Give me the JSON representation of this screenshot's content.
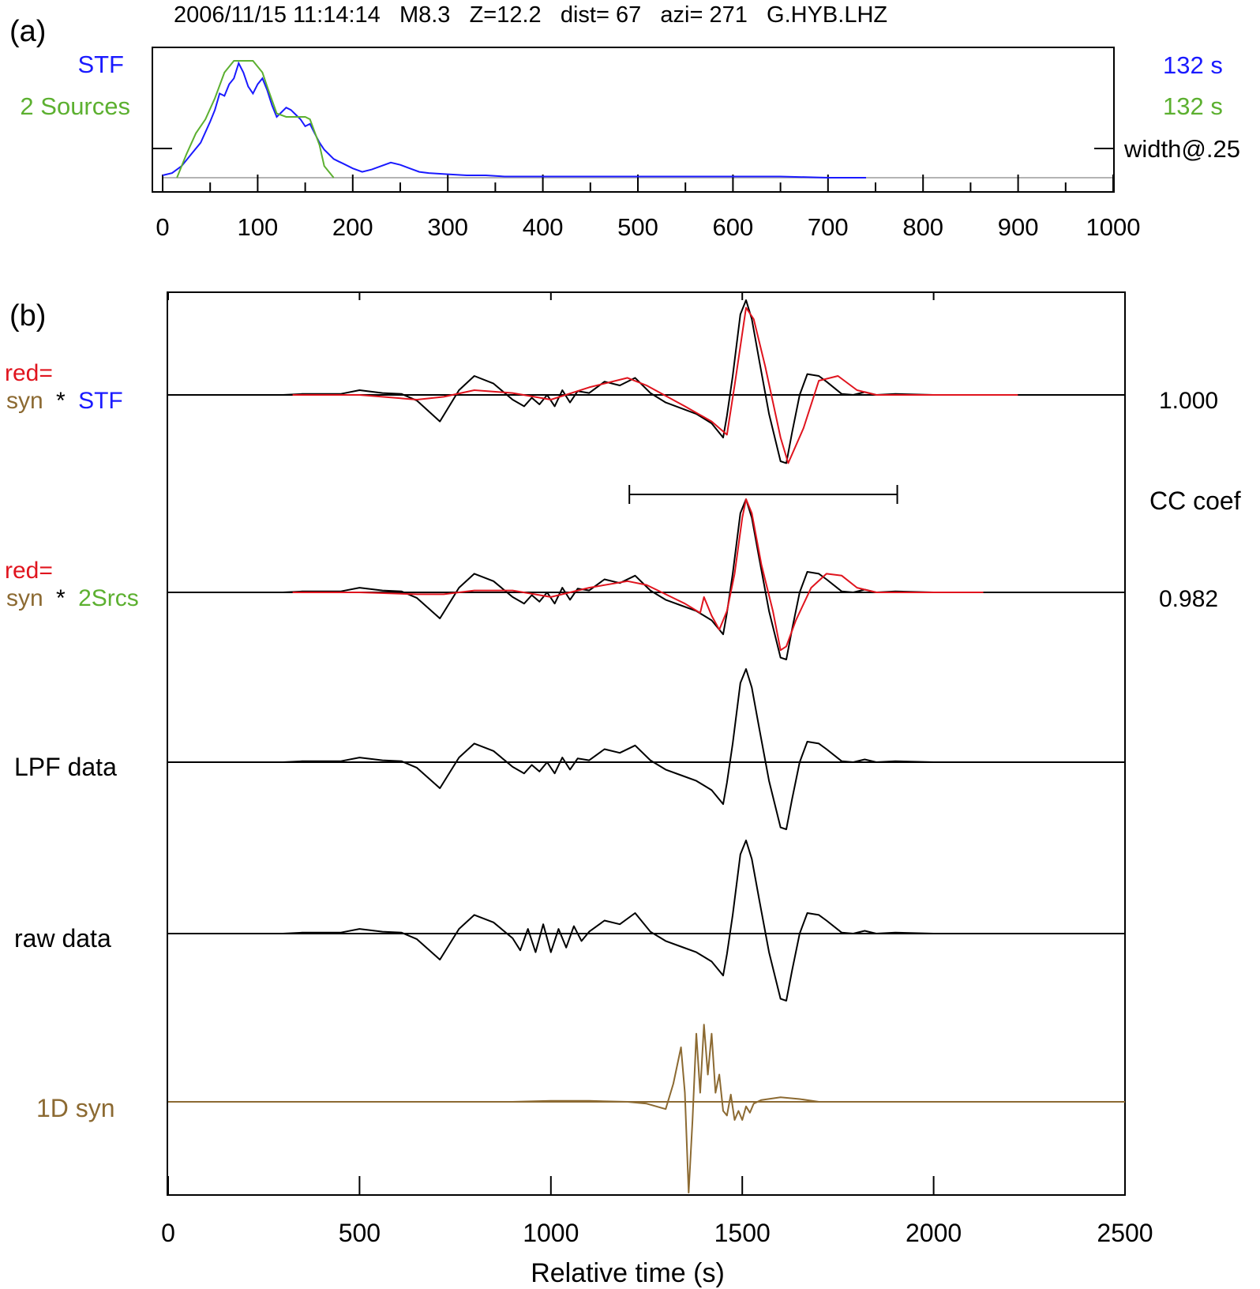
{
  "colors": {
    "blue": "#1a1aff",
    "green": "#5cb030",
    "red": "#e0141e",
    "brown": "#8c6a32",
    "black": "#000000",
    "grey": "#b4b4b4"
  },
  "panel_a": {
    "tag": "(a)",
    "header": "2006/11/15 11:14:14   M8.3   Z=12.2   dist= 67   azi= 271   G.HYB.LHZ",
    "left_labels": {
      "stf": "STF",
      "two_sources": "2 Sources"
    },
    "right_labels": {
      "stf_duration": "132 s",
      "two_sources_duration": "132 s",
      "width_note": "width@.25"
    }
  },
  "panel_b": {
    "tag": "(b)",
    "trace_labels": {
      "red_prefix": "red=",
      "syn": "syn",
      "star": "*",
      "stf": "STF",
      "two_srcs": "2Srcs",
      "lpf": "LPF data",
      "raw": "raw data",
      "syn1d": "1D syn"
    },
    "cc_title": "CC coef",
    "cc_values": [
      "1.000",
      "0.982"
    ],
    "xlabel": "Relative time (s)"
  },
  "chart_data": [
    {
      "type": "line",
      "xlim": [
        0,
        1000
      ],
      "xticks": [
        0,
        100,
        200,
        300,
        400,
        500,
        600,
        700,
        800,
        900,
        1000
      ],
      "xtick_labels": [
        "0",
        "100",
        "200",
        "300",
        "400",
        "500",
        "600",
        "700",
        "800",
        "900",
        "1000"
      ],
      "ylim": [
        0,
        1
      ],
      "series": [
        {
          "name": "STF",
          "color": "#1a1aff",
          "x": [
            0,
            10,
            20,
            30,
            40,
            50,
            55,
            60,
            65,
            70,
            75,
            80,
            85,
            90,
            95,
            100,
            105,
            110,
            115,
            120,
            125,
            130,
            135,
            140,
            145,
            150,
            155,
            160,
            165,
            170,
            175,
            180,
            185,
            190,
            200,
            210,
            220,
            230,
            240,
            250,
            260,
            270,
            280,
            300,
            320,
            340,
            360,
            380,
            400,
            450,
            500,
            550,
            600,
            650,
            700,
            740
          ],
          "y": [
            0.02,
            0.04,
            0.1,
            0.2,
            0.3,
            0.48,
            0.58,
            0.72,
            0.7,
            0.8,
            0.85,
            0.98,
            0.9,
            0.78,
            0.72,
            0.8,
            0.85,
            0.75,
            0.62,
            0.52,
            0.56,
            0.6,
            0.58,
            0.54,
            0.5,
            0.44,
            0.46,
            0.38,
            0.3,
            0.24,
            0.2,
            0.16,
            0.14,
            0.12,
            0.08,
            0.05,
            0.07,
            0.1,
            0.13,
            0.11,
            0.08,
            0.05,
            0.04,
            0.03,
            0.02,
            0.02,
            0.01,
            0.01,
            0.01,
            0.01,
            0.01,
            0.01,
            0.01,
            0.01,
            0.0,
            0.0
          ]
        },
        {
          "name": "2 Sources",
          "color": "#5cb030",
          "x": [
            15,
            25,
            35,
            45,
            55,
            65,
            75,
            85,
            95,
            105,
            110,
            120,
            130,
            140,
            150,
            155,
            165,
            170,
            180
          ],
          "y": [
            0.0,
            0.2,
            0.38,
            0.5,
            0.68,
            0.9,
            1.0,
            1.0,
            1.0,
            0.9,
            0.78,
            0.55,
            0.52,
            0.52,
            0.52,
            0.5,
            0.28,
            0.1,
            0.0
          ]
        }
      ]
    },
    {
      "type": "line",
      "xlim": [
        0,
        2500
      ],
      "xticks": [
        0,
        500,
        1000,
        1500,
        2000,
        2500
      ],
      "xtick_labels": [
        "0",
        "500",
        "1000",
        "1500",
        "2000",
        "2500"
      ],
      "xlabel": "Relative time (s)",
      "cc_window": [
        1205,
        1905
      ],
      "traces": [
        {
          "color": "#000000",
          "x": [
            0,
            150,
            300,
            350,
            450,
            500,
            560,
            610,
            650,
            710,
            760,
            800,
            850,
            900,
            930,
            950,
            970,
            990,
            1010,
            1030,
            1050,
            1070,
            1100,
            1140,
            1180,
            1220,
            1260,
            1300,
            1340,
            1380,
            1420,
            1450,
            1460,
            1475,
            1495,
            1510,
            1525,
            1545,
            1570,
            1600,
            1615,
            1630,
            1650,
            1670,
            1700,
            1720,
            1760,
            1790,
            1820,
            1850,
            1900,
            2000,
            2100,
            2200,
            2300,
            2500
          ],
          "y": [
            0,
            0,
            0,
            0.01,
            0.01,
            0.05,
            0.02,
            0.01,
            -0.06,
            -0.28,
            0.05,
            0.2,
            0.12,
            -0.05,
            -0.12,
            -0.03,
            -0.1,
            0.0,
            -0.12,
            0.05,
            -0.08,
            0.04,
            0.02,
            0.14,
            0.1,
            0.18,
            0.02,
            -0.08,
            -0.14,
            -0.2,
            -0.3,
            -0.45,
            -0.22,
            0.2,
            0.85,
            1.0,
            0.8,
            0.35,
            -0.2,
            -0.7,
            -0.72,
            -0.4,
            0.0,
            0.22,
            0.2,
            0.14,
            0.01,
            0.0,
            0.03,
            0.0,
            0.01,
            0.0,
            0.0,
            0.0,
            0.0,
            0.0
          ]
        },
        {
          "color": "#e0141e",
          "x": [
            325,
            500,
            650,
            720,
            800,
            900,
            1000,
            1100,
            1200,
            1250,
            1350,
            1420,
            1460,
            1480,
            1510,
            1530,
            1560,
            1600,
            1620,
            1660,
            1700,
            1750,
            1800,
            1850,
            2000,
            2220
          ],
          "y": [
            0,
            0,
            -0.05,
            -0.02,
            0.05,
            0.02,
            -0.05,
            0.08,
            0.18,
            0.1,
            -0.12,
            -0.28,
            -0.42,
            0.1,
            0.92,
            0.8,
            0.3,
            -0.45,
            -0.72,
            -0.35,
            0.15,
            0.2,
            0.05,
            0.0,
            0.0,
            0.0
          ]
        },
        {
          "color": "#000000",
          "x": [
            0,
            150,
            300,
            350,
            450,
            500,
            560,
            610,
            650,
            710,
            760,
            800,
            850,
            900,
            930,
            950,
            970,
            990,
            1010,
            1030,
            1050,
            1070,
            1100,
            1140,
            1180,
            1220,
            1260,
            1300,
            1340,
            1380,
            1420,
            1450,
            1460,
            1475,
            1495,
            1510,
            1525,
            1545,
            1570,
            1600,
            1615,
            1630,
            1650,
            1670,
            1700,
            1720,
            1760,
            1790,
            1820,
            1850,
            1900,
            2000,
            2100,
            2200,
            2300,
            2500
          ],
          "y": [
            0,
            0,
            0,
            0.01,
            0.01,
            0.05,
            0.02,
            0.01,
            -0.06,
            -0.28,
            0.05,
            0.2,
            0.12,
            -0.05,
            -0.12,
            -0.03,
            -0.1,
            0.0,
            -0.12,
            0.05,
            -0.08,
            0.04,
            0.02,
            0.14,
            0.1,
            0.18,
            0.02,
            -0.08,
            -0.14,
            -0.2,
            -0.3,
            -0.45,
            -0.22,
            0.2,
            0.85,
            1.0,
            0.8,
            0.35,
            -0.2,
            -0.7,
            -0.72,
            -0.4,
            0.0,
            0.22,
            0.2,
            0.14,
            0.01,
            0.0,
            0.03,
            0.0,
            0.01,
            0.0,
            0.0,
            0.0,
            0.0,
            0.0
          ]
        },
        {
          "color": "#e0141e",
          "x": [
            325,
            500,
            650,
            720,
            800,
            900,
            1000,
            1100,
            1200,
            1250,
            1350,
            1390,
            1400,
            1420,
            1440,
            1460,
            1480,
            1500,
            1510,
            1525,
            1550,
            1580,
            1600,
            1615,
            1640,
            1680,
            1720,
            1760,
            1800,
            1850,
            2000,
            2130
          ],
          "y": [
            0,
            0,
            -0.02,
            -0.02,
            0.02,
            0.02,
            -0.05,
            0.05,
            0.12,
            0.08,
            -0.12,
            -0.22,
            -0.05,
            -0.25,
            -0.4,
            -0.2,
            0.2,
            0.8,
            1.0,
            0.85,
            0.3,
            -0.2,
            -0.62,
            -0.58,
            -0.3,
            0.05,
            0.2,
            0.18,
            0.05,
            0.0,
            0.0,
            0.0
          ]
        },
        {
          "color": "#000000",
          "x": [
            0,
            150,
            300,
            350,
            450,
            500,
            560,
            610,
            650,
            710,
            760,
            800,
            850,
            900,
            930,
            950,
            970,
            990,
            1010,
            1030,
            1050,
            1070,
            1100,
            1140,
            1180,
            1220,
            1260,
            1300,
            1340,
            1380,
            1420,
            1450,
            1460,
            1475,
            1495,
            1510,
            1525,
            1545,
            1570,
            1600,
            1615,
            1630,
            1650,
            1670,
            1700,
            1720,
            1760,
            1790,
            1820,
            1850,
            1900,
            2000,
            2100,
            2200,
            2300,
            2500
          ],
          "y": [
            0,
            0,
            0,
            0.01,
            0.01,
            0.05,
            0.02,
            0.01,
            -0.06,
            -0.28,
            0.05,
            0.2,
            0.12,
            -0.05,
            -0.12,
            -0.03,
            -0.1,
            0.0,
            -0.12,
            0.05,
            -0.08,
            0.04,
            0.02,
            0.14,
            0.1,
            0.18,
            0.02,
            -0.08,
            -0.14,
            -0.2,
            -0.3,
            -0.45,
            -0.22,
            0.2,
            0.85,
            1.0,
            0.8,
            0.35,
            -0.2,
            -0.7,
            -0.72,
            -0.4,
            0.0,
            0.22,
            0.2,
            0.14,
            0.01,
            0.0,
            0.03,
            0.0,
            0.01,
            0.0,
            0.0,
            0.0,
            0.0,
            0.0
          ]
        },
        {
          "color": "#000000",
          "x": [
            0,
            150,
            300,
            350,
            450,
            500,
            560,
            610,
            650,
            710,
            760,
            800,
            850,
            900,
            920,
            940,
            960,
            980,
            1000,
            1020,
            1040,
            1060,
            1080,
            1100,
            1140,
            1180,
            1220,
            1260,
            1300,
            1340,
            1380,
            1420,
            1450,
            1460,
            1475,
            1495,
            1510,
            1525,
            1545,
            1570,
            1600,
            1615,
            1630,
            1650,
            1670,
            1700,
            1720,
            1760,
            1790,
            1820,
            1850,
            1900,
            2000,
            2100,
            2200,
            2300,
            2500
          ],
          "y": [
            0,
            0,
            0,
            0.01,
            0.01,
            0.05,
            0.02,
            0.01,
            -0.06,
            -0.28,
            0.05,
            0.2,
            0.12,
            -0.05,
            -0.18,
            0.05,
            -0.2,
            0.1,
            -0.2,
            0.05,
            -0.15,
            0.08,
            -0.08,
            0.02,
            0.14,
            0.1,
            0.22,
            0.02,
            -0.08,
            -0.14,
            -0.2,
            -0.3,
            -0.45,
            -0.22,
            0.2,
            0.85,
            1.0,
            0.8,
            0.35,
            -0.2,
            -0.7,
            -0.72,
            -0.4,
            0.0,
            0.22,
            0.2,
            0.14,
            0.01,
            0.0,
            0.03,
            0.0,
            0.01,
            0.0,
            0.0,
            0.0,
            0.0,
            0.0
          ]
        },
        {
          "color": "#8c6a32",
          "x": [
            0,
            800,
            900,
            1000,
            1100,
            1200,
            1250,
            1300,
            1320,
            1340,
            1350,
            1360,
            1370,
            1380,
            1390,
            1400,
            1410,
            1420,
            1430,
            1440,
            1450,
            1460,
            1470,
            1480,
            1490,
            1500,
            1510,
            1520,
            1530,
            1550,
            1600,
            1650,
            1700,
            1750,
            1800,
            2000,
            2500
          ],
          "y": [
            0,
            0,
            0,
            0.01,
            0.01,
            0.0,
            -0.02,
            -0.08,
            0.2,
            0.6,
            0.1,
            -1.0,
            -0.2,
            0.75,
            0.1,
            0.85,
            0.3,
            0.75,
            0.1,
            0.3,
            -0.1,
            -0.15,
            0.08,
            -0.2,
            -0.1,
            -0.2,
            -0.05,
            -0.12,
            -0.02,
            0.02,
            0.05,
            0.03,
            0.0,
            0.0,
            0.0,
            0.0,
            0.0
          ]
        }
      ]
    }
  ]
}
